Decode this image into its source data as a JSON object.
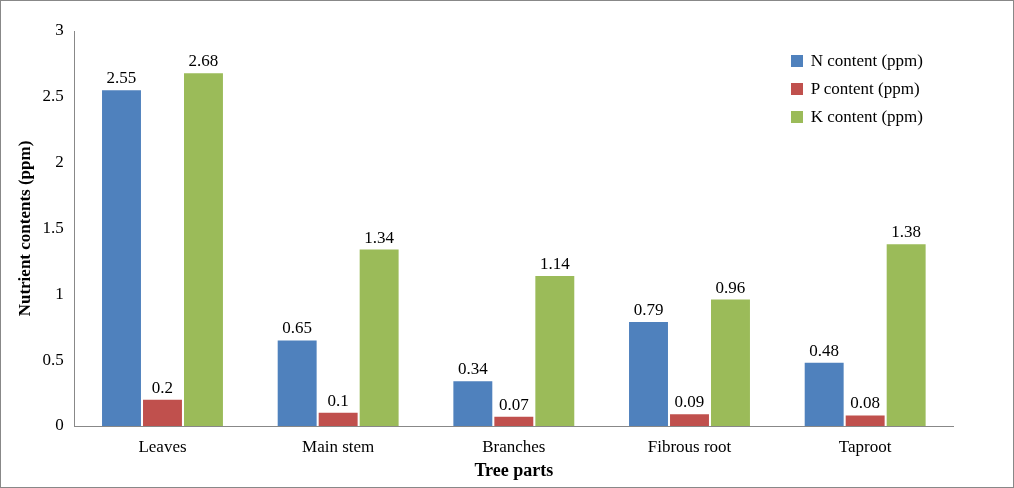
{
  "chart_data": {
    "type": "bar",
    "xlabel": "Tree parts",
    "ylabel": "Nutrient contents (ppm)",
    "categories": [
      "Leaves",
      "Main stem",
      "Branches",
      "Fibrous root",
      "Taproot"
    ],
    "series": [
      {
        "name": "N content (ppm)",
        "color": "#4f81bd",
        "values": [
          2.55,
          0.65,
          0.34,
          0.79,
          0.48
        ]
      },
      {
        "name": "P content (ppm)",
        "color": "#c0504d",
        "values": [
          0.2,
          0.1,
          0.07,
          0.09,
          0.08
        ]
      },
      {
        "name": "K content (ppm)",
        "color": "#9bbb59",
        "values": [
          2.68,
          1.34,
          1.14,
          0.96,
          1.38
        ]
      }
    ],
    "ylim": [
      0,
      3
    ],
    "yticks": [
      0,
      0.5,
      1,
      1.5,
      2,
      2.5,
      3
    ],
    "grid": false,
    "legend": "top right",
    "data_labels": true
  }
}
